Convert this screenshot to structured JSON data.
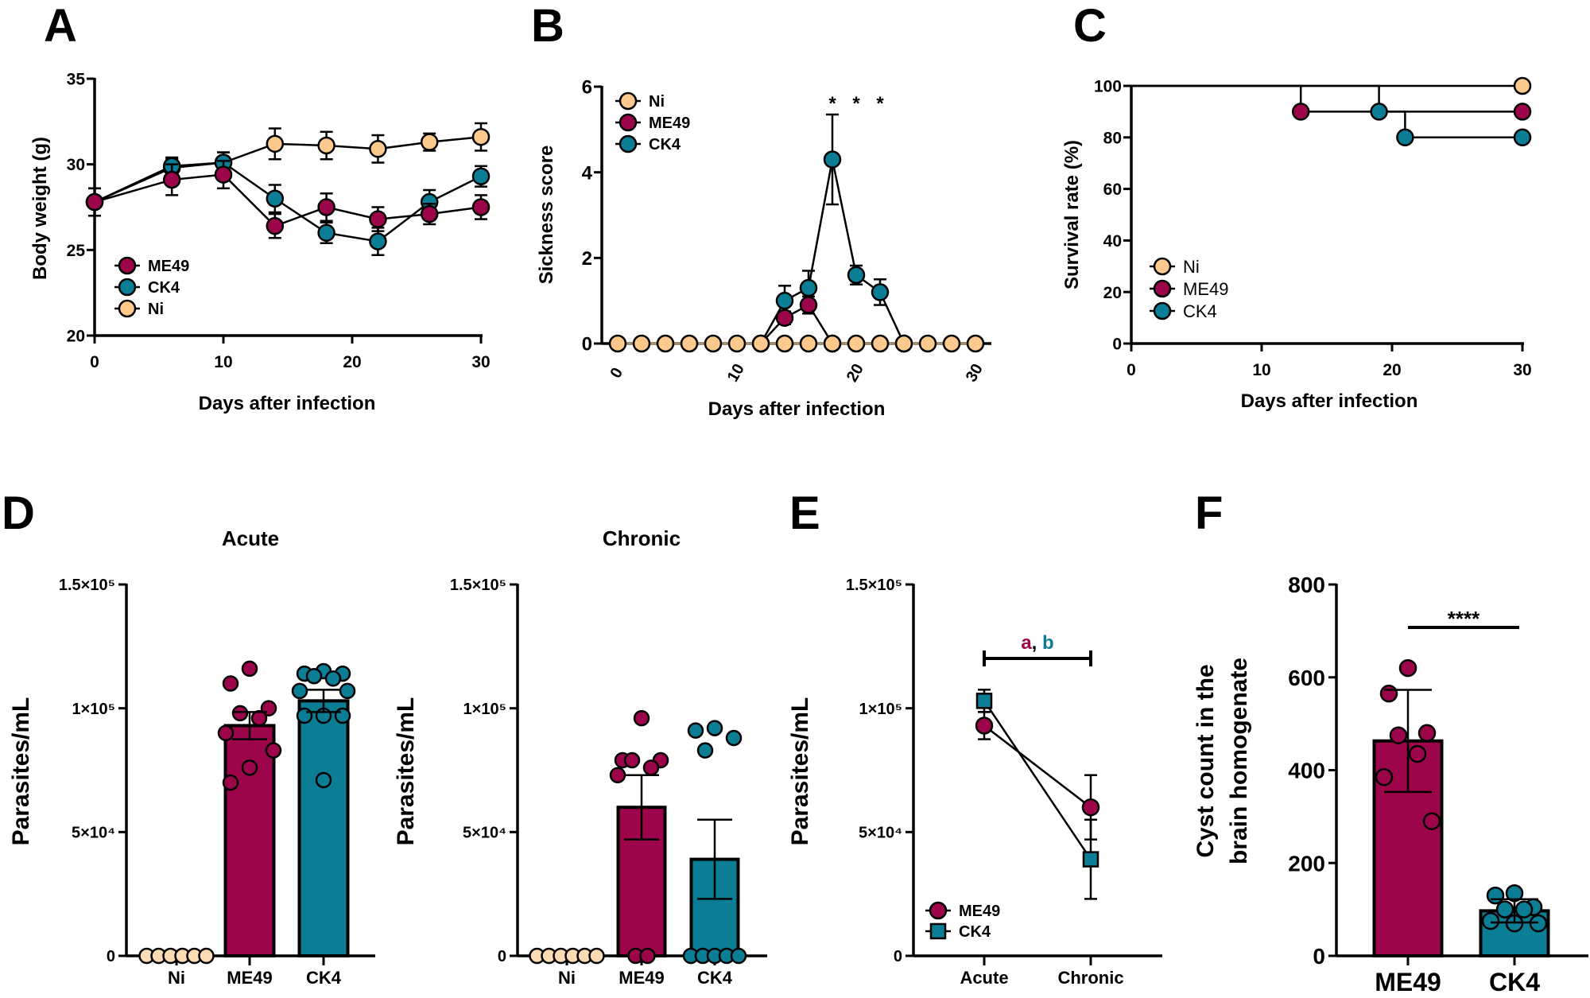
{
  "panel_labels": [
    "A",
    "B",
    "C",
    "D",
    "E",
    "F"
  ],
  "colors": {
    "ME49": "#9c0549",
    "CK4": "#0b7d95",
    "Ni": "#fec98c",
    "Ni_light": "#fddcb5",
    "Ni_line": "#a58e6c"
  },
  "chart_data": [
    {
      "panel": "A",
      "type": "line",
      "xlabel": "Days after infection",
      "ylabel": "Body weight (g)",
      "xlim": [
        0,
        30
      ],
      "ylim": [
        20,
        35
      ],
      "xticks": [
        0,
        10,
        20,
        30
      ],
      "xtick_labels": [
        "0",
        "10",
        "20",
        "30"
      ],
      "yticks": [
        20,
        25,
        30,
        35
      ],
      "ytick_labels": [
        "20",
        "25",
        "30",
        "35"
      ],
      "legend": [
        "ME49",
        "CK4",
        "Ni"
      ],
      "legend_placement": "bottom-left",
      "series": [
        {
          "name": "Ni",
          "x": [
            0,
            6,
            10,
            14,
            18,
            22,
            26,
            30
          ],
          "y": [
            27.8,
            29.8,
            30.1,
            31.2,
            31.1,
            30.9,
            31.3,
            31.6
          ],
          "err": [
            0.8,
            0.5,
            0.6,
            0.9,
            0.8,
            0.8,
            0.5,
            0.8
          ]
        },
        {
          "name": "CK4",
          "x": [
            0,
            6,
            10,
            14,
            18,
            22,
            26,
            30
          ],
          "y": [
            27.8,
            29.9,
            30.1,
            28.0,
            26.0,
            25.5,
            27.8,
            29.3
          ],
          "err": [
            0.8,
            0.5,
            0.6,
            0.8,
            0.6,
            0.8,
            0.7,
            0.6
          ]
        },
        {
          "name": "ME49",
          "x": [
            0,
            6,
            10,
            14,
            18,
            22,
            26,
            30
          ],
          "y": [
            27.8,
            29.1,
            29.4,
            26.4,
            27.5,
            26.8,
            27.1,
            27.5
          ],
          "err": [
            0.8,
            0.9,
            0.8,
            0.7,
            0.8,
            0.7,
            0.6,
            0.7
          ]
        }
      ]
    },
    {
      "panel": "B",
      "type": "line",
      "xlabel": "Days after infection",
      "ylabel": "Sickness score",
      "xlim": [
        0,
        30
      ],
      "ylim": [
        0,
        6
      ],
      "xticks": [
        0,
        10,
        20,
        30
      ],
      "xtick_labels": [
        "0",
        "10",
        "20",
        "30"
      ],
      "yticks": [
        0,
        2,
        4,
        6
      ],
      "ytick_labels": [
        "0",
        "2",
        "4",
        "6"
      ],
      "legend": [
        "Ni",
        "ME49",
        "CK4"
      ],
      "legend_placement": "top-left",
      "series": [
        {
          "name": "CK4",
          "x": [
            12,
            14,
            16,
            18,
            20,
            22,
            24
          ],
          "y": [
            0,
            1.0,
            1.3,
            4.3,
            1.6,
            1.2,
            0
          ],
          "err": [
            0,
            0.35,
            0.4,
            1.05,
            0.22,
            0.3,
            0
          ]
        },
        {
          "name": "ME49",
          "x": [
            12,
            14,
            16,
            18
          ],
          "y": [
            0,
            0.6,
            0.9,
            0
          ],
          "err": [
            0,
            0.15,
            0.2,
            0
          ]
        },
        {
          "name": "Ni",
          "x": [
            0,
            2,
            4,
            6,
            8,
            10,
            12,
            14,
            16,
            18,
            20,
            22,
            24,
            26,
            28,
            30
          ],
          "y": [
            0,
            0,
            0,
            0,
            0,
            0,
            0,
            0,
            0,
            0,
            0,
            0,
            0,
            0,
            0,
            0
          ],
          "err": []
        }
      ],
      "annotations": [
        {
          "x": 18,
          "text": "*"
        },
        {
          "x": 20,
          "text": "*"
        },
        {
          "x": 22,
          "text": "*"
        }
      ]
    },
    {
      "panel": "C",
      "type": "line",
      "step": true,
      "xlabel": "Days after infection",
      "ylabel": "Survival rate (%)",
      "xlim": [
        0,
        30
      ],
      "ylim": [
        0,
        100
      ],
      "xticks": [
        0,
        10,
        20,
        30
      ],
      "xtick_labels": [
        "0",
        "10",
        "20",
        "30"
      ],
      "yticks": [
        0,
        20,
        40,
        60,
        80,
        100
      ],
      "ytick_labels": [
        "0",
        "20",
        "40",
        "60",
        "80",
        "100"
      ],
      "legend": [
        "Ni",
        "ME49",
        "CK4"
      ],
      "legend_placement": "bottom-left",
      "series": [
        {
          "name": "Ni",
          "x": [
            0,
            30
          ],
          "y": [
            100,
            100
          ],
          "markers": [
            [
              30,
              100
            ]
          ]
        },
        {
          "name": "ME49",
          "x": [
            0,
            13,
            30
          ],
          "y": [
            100,
            90,
            90
          ],
          "markers": [
            [
              13,
              90
            ],
            [
              30,
              90
            ]
          ]
        },
        {
          "name": "CK4",
          "x": [
            0,
            19,
            21,
            30
          ],
          "y": [
            100,
            90,
            80,
            80
          ],
          "markers": [
            [
              19,
              90
            ],
            [
              21,
              80
            ],
            [
              30,
              80
            ]
          ]
        }
      ]
    },
    {
      "panel": "D",
      "type": "bar",
      "title": "Acute",
      "ylabel": "Parasites/mL",
      "ylim": [
        0,
        150000
      ],
      "yticks": [
        0,
        50000,
        100000,
        150000
      ],
      "ytick_labels": [
        "0",
        "5×10⁴",
        "1×10⁵",
        "1.5×10⁵"
      ],
      "categories": [
        "Ni",
        "ME49",
        "CK4"
      ],
      "values": [
        0,
        93000,
        103000
      ],
      "errors": [
        0,
        5500,
        4500
      ],
      "points": [
        [
          0,
          0,
          0,
          0,
          0,
          0
        ],
        [
          116000,
          110000,
          100000,
          98000,
          96000,
          90000,
          83000,
          76000,
          70000
        ],
        [
          115000,
          114000,
          114000,
          113000,
          112000,
          107000,
          107000,
          97000,
          97000,
          97000,
          71000
        ]
      ]
    },
    {
      "panel": "D",
      "type": "bar",
      "title": "Chronic",
      "ylabel": "Parasites/mL",
      "ylim": [
        0,
        150000
      ],
      "yticks": [
        0,
        50000,
        100000,
        150000
      ],
      "ytick_labels": [
        "0",
        "5×10⁴",
        "1×10⁵",
        "1.5×10⁵"
      ],
      "categories": [
        "Ni",
        "ME49",
        "CK4"
      ],
      "values": [
        0,
        60000,
        39000
      ],
      "errors": [
        0,
        13000,
        16000
      ],
      "points": [
        [
          0,
          0,
          0,
          0,
          0,
          0
        ],
        [
          96000,
          79000,
          79000,
          79000,
          76000,
          73000,
          0,
          0
        ],
        [
          92000,
          91000,
          88000,
          83000,
          0,
          0,
          0,
          0,
          0
        ]
      ]
    },
    {
      "panel": "E",
      "type": "line",
      "ylabel": "Parasites/mL",
      "ylim": [
        0,
        150000
      ],
      "yticks": [
        0,
        50000,
        100000,
        150000
      ],
      "ytick_labels": [
        "0",
        "5×10⁴",
        "1×10⁵",
        "1.5×10⁵"
      ],
      "categories": [
        "Acute",
        "Chronic"
      ],
      "legend": [
        "ME49",
        "CK4"
      ],
      "legend_placement": "bottom-left",
      "series": [
        {
          "name": "ME49",
          "marker": "circle",
          "y": [
            93000,
            60000
          ],
          "err": [
            5500,
            13000
          ]
        },
        {
          "name": "CK4",
          "marker": "square",
          "y": [
            103000,
            39000
          ],
          "err": [
            4500,
            16000
          ]
        }
      ],
      "significance": {
        "label_a": "a",
        "separator": ",",
        "label_b": "b"
      }
    },
    {
      "panel": "F",
      "type": "bar",
      "ylabel_lines": [
        "Cyst count in the",
        "brain homogenate"
      ],
      "ylim": [
        0,
        800
      ],
      "yticks": [
        0,
        200,
        400,
        600,
        800
      ],
      "ytick_labels": [
        "0",
        "200",
        "400",
        "600",
        "800"
      ],
      "categories": [
        "ME49",
        "CK4"
      ],
      "values": [
        463,
        97
      ],
      "errors": [
        110,
        25
      ],
      "points": [
        [
          620,
          565,
          480,
          475,
          435,
          385,
          290
        ],
        [
          135,
          130,
          105,
          100,
          100,
          75,
          70,
          70
        ]
      ],
      "significance": "****"
    }
  ]
}
